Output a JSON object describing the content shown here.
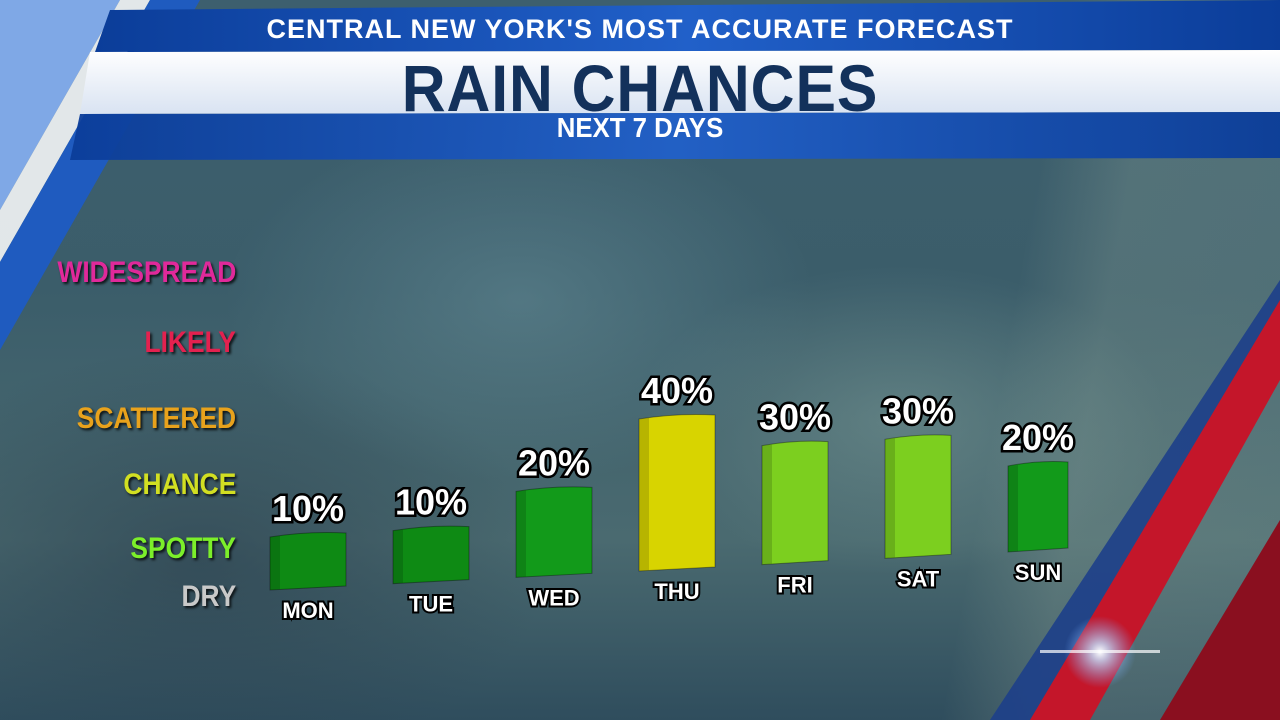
{
  "header": {
    "top_line": "CENTRAL NEW YORK'S MOST ACCURATE FORECAST",
    "title": "RAIN CHANCES",
    "subtitle": "NEXT 7 DAYS"
  },
  "colors": {
    "title_navy": "#13315b",
    "band_blue": "#1d4fa5",
    "accent_red": "#d11a2a"
  },
  "chart_data": {
    "type": "bar",
    "title": "RAIN CHANCES",
    "subtitle": "NEXT 7 DAYS",
    "categories": [
      "MON",
      "TUE",
      "WED",
      "THU",
      "FRI",
      "SAT",
      "SUN"
    ],
    "values": [
      10,
      10,
      20,
      40,
      30,
      30,
      20
    ],
    "value_labels": [
      "10%",
      "10%",
      "20%",
      "40%",
      "30%",
      "30%",
      "20%"
    ],
    "bar_colors": [
      "#0e8a14",
      "#0e8a14",
      "#129a1a",
      "#d8d400",
      "#7ccf1f",
      "#7ccf1f",
      "#129a1a"
    ],
    "y_categories": [
      {
        "label": "WIDESPREAD",
        "color": "#e0299a"
      },
      {
        "label": "LIKELY",
        "color": "#e3214f"
      },
      {
        "label": "SCATTERED",
        "color": "#e8a21c"
      },
      {
        "label": "CHANCE",
        "color": "#d2df22"
      },
      {
        "label": "SPOTTY",
        "color": "#7cef2a"
      },
      {
        "label": "DRY",
        "color": "#c9c9c9"
      }
    ],
    "ylim": [
      0,
      100
    ],
    "grid": false,
    "legend": "left"
  }
}
